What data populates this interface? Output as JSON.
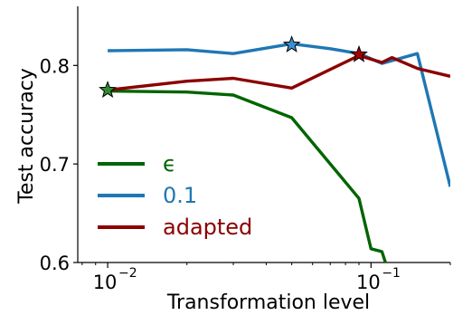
{
  "chart_data": {
    "type": "line",
    "title": "",
    "xlabel": "Transformation level",
    "ylabel": "Test accuracy",
    "xscale": "log",
    "xlim": [
      0.0077,
      0.2
    ],
    "ylim": [
      0.6,
      0.86
    ],
    "xticks": [
      {
        "value": 0.01,
        "label": "10",
        "exp": "−2"
      },
      {
        "value": 0.1,
        "label": "10",
        "exp": "−1"
      }
    ],
    "yticks": [
      {
        "value": 0.6,
        "label": "0.6"
      },
      {
        "value": 0.7,
        "label": "0.7"
      },
      {
        "value": 0.8,
        "label": "0.8"
      }
    ],
    "grid": false,
    "legend_position": "lower-left",
    "series": [
      {
        "name": "ϵ",
        "color": "#006400",
        "x": [
          0.01,
          0.02,
          0.03,
          0.05,
          0.09,
          0.1,
          0.11,
          0.12
        ],
        "y": [
          0.774,
          0.773,
          0.77,
          0.747,
          0.665,
          0.614,
          0.611,
          0.58
        ],
        "marker": {
          "x": 0.01,
          "y": 0.775,
          "color": "#2e8b2e"
        }
      },
      {
        "name": "0.1",
        "color": "#1f77b4",
        "x": [
          0.01,
          0.02,
          0.03,
          0.05,
          0.07,
          0.09,
          0.11,
          0.15,
          0.2
        ],
        "y": [
          0.815,
          0.816,
          0.812,
          0.822,
          0.817,
          0.812,
          0.802,
          0.812,
          0.677
        ],
        "marker": {
          "x": 0.05,
          "y": 0.821,
          "color": "#3a8fd0"
        }
      },
      {
        "name": "adapted",
        "color": "#8b0000",
        "x": [
          0.01,
          0.02,
          0.03,
          0.05,
          0.09,
          0.11,
          0.12,
          0.15,
          0.2
        ],
        "y": [
          0.775,
          0.784,
          0.787,
          0.777,
          0.81,
          0.803,
          0.808,
          0.797,
          0.789
        ],
        "marker": {
          "x": 0.09,
          "y": 0.811,
          "color": "#a50000"
        }
      }
    ]
  }
}
